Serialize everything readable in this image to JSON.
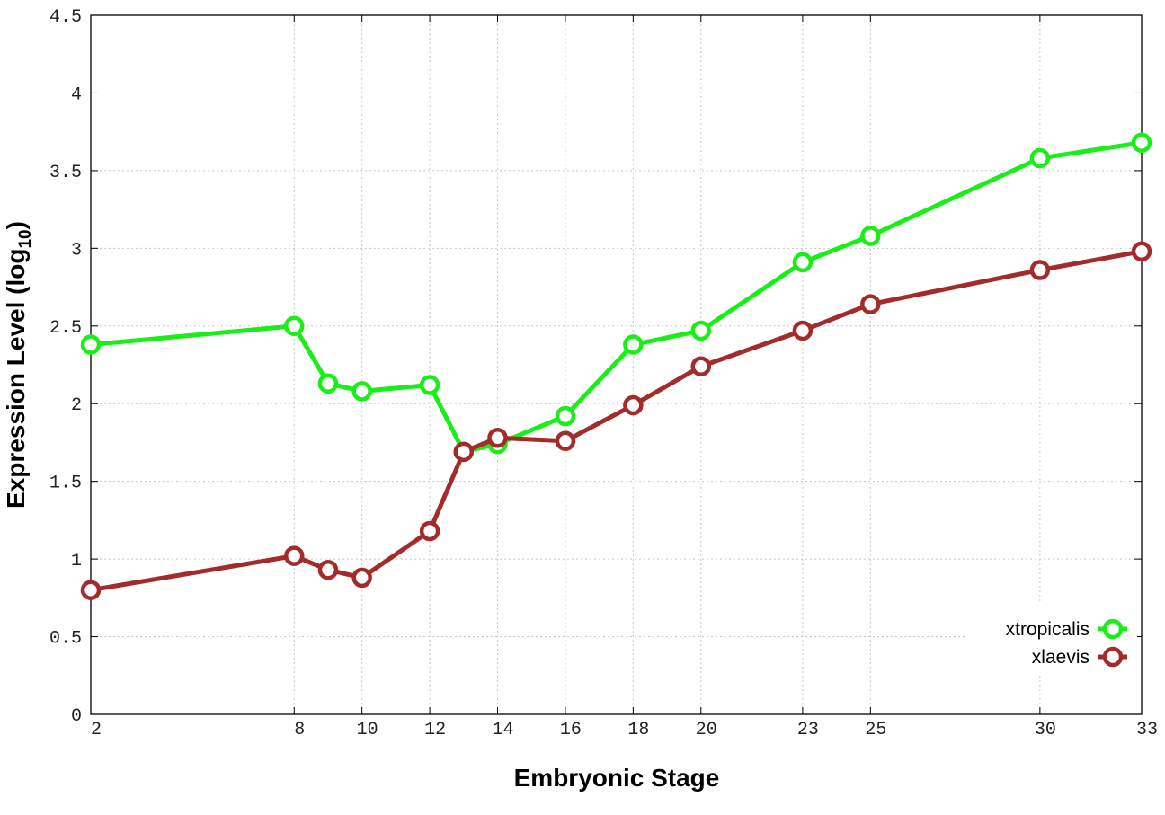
{
  "chart_data": {
    "type": "line",
    "x": [
      2,
      8,
      9,
      10,
      12,
      13,
      14,
      16,
      18,
      20,
      23,
      25,
      30,
      33
    ],
    "x_ticks": [
      2,
      8,
      10,
      12,
      14,
      16,
      18,
      20,
      23,
      25,
      30,
      33
    ],
    "y_ticks": [
      "0",
      "0.5",
      "1",
      "1.5",
      "2",
      "2.5",
      "3",
      "3.5",
      "4",
      "4.5"
    ],
    "series": [
      {
        "name": "xtropicalis",
        "color": "#19ee19",
        "values": [
          2.38,
          2.5,
          2.13,
          2.08,
          2.12,
          1.69,
          1.74,
          1.92,
          2.38,
          2.47,
          2.91,
          3.08,
          3.58,
          3.68
        ]
      },
      {
        "name": "xlaevis",
        "color": "#a32b2b",
        "values": [
          0.8,
          1.02,
          0.93,
          0.88,
          1.18,
          1.69,
          1.78,
          1.76,
          1.99,
          2.24,
          2.47,
          2.64,
          2.86,
          2.98
        ]
      }
    ],
    "xlabel": "Embryonic Stage",
    "ylabel": "Expression Level (log",
    "ylabel_sub": "10",
    "ylabel_close": ")",
    "xlim": [
      2,
      33
    ],
    "ylim": [
      0,
      4.5
    ],
    "grid": true,
    "legend_position": "bottom-right"
  }
}
